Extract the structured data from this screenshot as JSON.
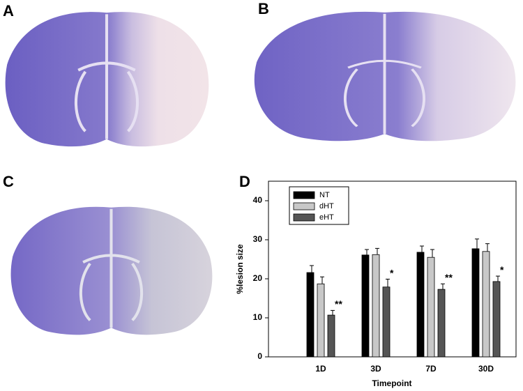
{
  "panel_labels": [
    "A",
    "B",
    "C",
    "D"
  ],
  "chart_data": {
    "type": "bar",
    "categories": [
      "1D",
      "3D",
      "7D",
      "30D"
    ],
    "xlabel": "Timepoint",
    "ylabel": "%lesion size",
    "ylim": [
      0,
      45
    ],
    "yticks": [
      0,
      10,
      20,
      30,
      40
    ],
    "series": [
      {
        "name": "NT",
        "color": "#000000",
        "values": [
          21.6,
          26.1,
          26.8,
          27.7
        ],
        "errors": [
          1.8,
          1.4,
          1.6,
          2.5
        ]
      },
      {
        "name": "dHT",
        "color": "#c8c8c8",
        "values": [
          18.7,
          26.2,
          25.5,
          27.0
        ],
        "errors": [
          1.8,
          1.6,
          2.0,
          2.0
        ]
      },
      {
        "name": "eHT",
        "color": "#555555",
        "values": [
          10.7,
          17.9,
          17.3,
          19.3
        ],
        "errors": [
          1.2,
          2.0,
          1.4,
          1.4
        ],
        "labels": [
          "**",
          "*",
          "**",
          "*"
        ]
      }
    ]
  }
}
